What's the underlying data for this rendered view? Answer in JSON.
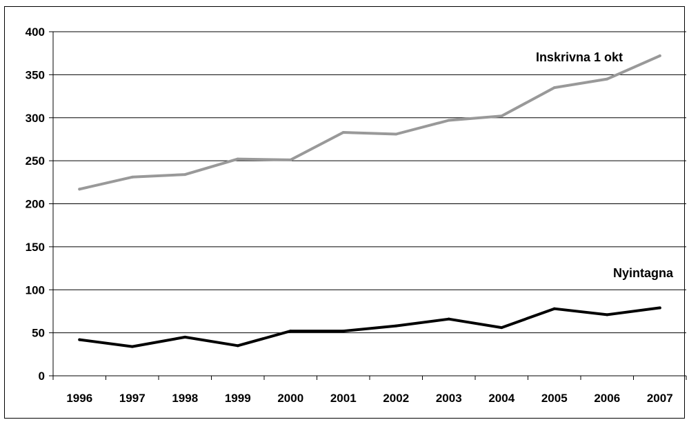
{
  "chart_data": {
    "type": "line",
    "categories": [
      "1996",
      "1997",
      "1998",
      "1999",
      "2000",
      "2001",
      "2002",
      "2003",
      "2004",
      "2005",
      "2006",
      "2007"
    ],
    "ylim": [
      0,
      400
    ],
    "yticks": [
      0,
      50,
      100,
      150,
      200,
      250,
      300,
      350,
      400
    ],
    "grid": true,
    "series": [
      {
        "name": "Inskrivna 1 okt",
        "color": "#999999",
        "values": [
          217,
          231,
          234,
          252,
          251,
          283,
          281,
          297,
          302,
          335,
          345,
          372
        ]
      },
      {
        "name": "Nyintagna",
        "color": "#000000",
        "values": [
          42,
          34,
          45,
          35,
          52,
          52,
          58,
          66,
          56,
          78,
          71,
          79
        ]
      }
    ]
  }
}
